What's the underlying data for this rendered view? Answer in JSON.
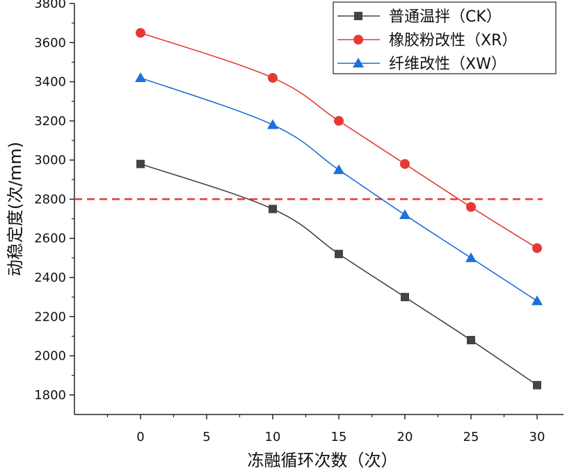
{
  "chart_data": {
    "type": "line",
    "title": "",
    "xlabel": "冻融循环次数（次）",
    "ylabel": "动稳定度(次/mm)",
    "x": [
      0,
      10,
      15,
      20,
      25,
      30
    ],
    "xlim": [
      -5,
      32
    ],
    "ylim": [
      1700,
      3800
    ],
    "xticks": [
      0,
      5,
      10,
      15,
      20,
      25,
      30
    ],
    "yticks": [
      1800,
      2000,
      2200,
      2400,
      2600,
      2800,
      3000,
      3200,
      3400,
      3600,
      3800
    ],
    "grid": false,
    "legend_position": "top-right",
    "reference_line": {
      "y": 2800,
      "color": "#e53935",
      "style": "dashed"
    },
    "series": [
      {
        "name": "普通温拌（CK）",
        "color": "#444444",
        "marker": "square",
        "values": [
          2980,
          2750,
          2520,
          2300,
          2080,
          1850
        ]
      },
      {
        "name": "橡胶粉改性（XR）",
        "color": "#e53935",
        "marker": "circle",
        "values": [
          3650,
          3420,
          3200,
          2980,
          2760,
          2550
        ]
      },
      {
        "name": "纤维改性（XW）",
        "color": "#1e6fd9",
        "marker": "triangle",
        "values": [
          3420,
          3180,
          2950,
          2720,
          2500,
          2280
        ]
      }
    ]
  }
}
